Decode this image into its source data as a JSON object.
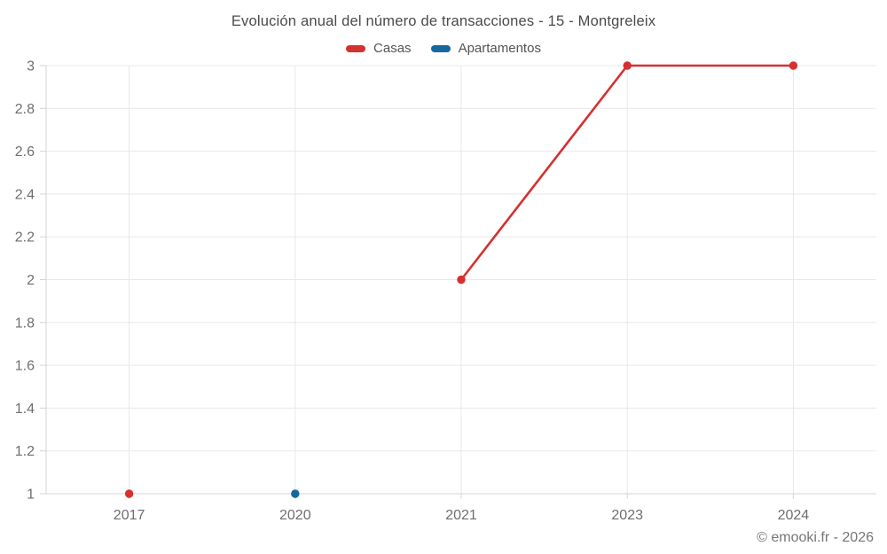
{
  "header": {
    "title": "Evolución anual del número de transacciones - 15 - Montgreleix"
  },
  "footer": {
    "credit": "© emooki.fr - 2026"
  },
  "colors": {
    "casas": "#d5312f",
    "apartamentos": "#1569a0",
    "grid": "#e8e8e8",
    "axis": "#d4d4d4",
    "tick_label": "#6e6e6e",
    "title_text": "#4a4a4a",
    "background": "#ffffff"
  },
  "chart_data": {
    "type": "line",
    "title": "Evolución anual del número de transacciones - 15 - Montgreleix",
    "categories": [
      "2017",
      "2020",
      "2021",
      "2023",
      "2024"
    ],
    "series": [
      {
        "name": "Casas",
        "color": "#d5312f",
        "values": [
          1,
          null,
          2,
          3,
          3
        ]
      },
      {
        "name": "Apartamentos",
        "color": "#1569a0",
        "values": [
          null,
          1,
          null,
          null,
          null
        ]
      }
    ],
    "xlabel": "",
    "ylabel": "",
    "ylim": [
      1,
      3
    ],
    "yticks": [
      1,
      1.2,
      1.4,
      1.6,
      1.8,
      2,
      2.2,
      2.4,
      2.6,
      2.8,
      3
    ],
    "grid": true,
    "legend_position": "top"
  }
}
